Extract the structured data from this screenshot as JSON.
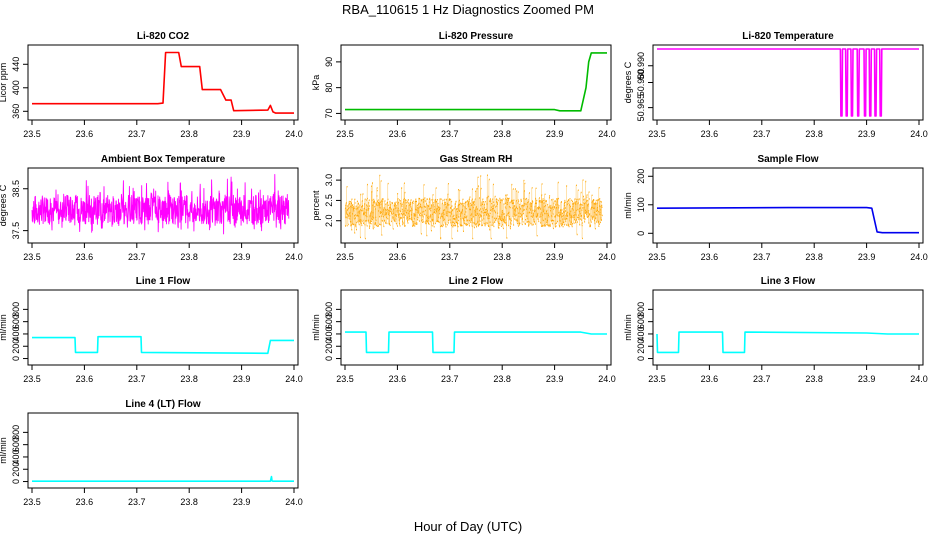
{
  "figure": {
    "title": "RBA_110615  1 Hz Diagnostics Zoomed PM",
    "xlabel": "Hour of Day (UTC)"
  },
  "chart_data": [
    {
      "id": "co2",
      "type": "line",
      "title": "Li-820 CO2",
      "ylabel": "Licor ppm",
      "color": "#ff0000",
      "xlim": [
        23.5,
        24.0
      ],
      "ylim": [
        352,
        466
      ],
      "xticks": [
        23.5,
        23.6,
        23.7,
        23.8,
        23.9,
        24.0
      ],
      "yticks": [
        360,
        400,
        440
      ],
      "yticklabels": [
        "360",
        "400",
        "440"
      ],
      "x": [
        23.5,
        23.6,
        23.74,
        23.75,
        23.755,
        23.78,
        23.785,
        23.82,
        23.825,
        23.86,
        23.87,
        23.88,
        23.885,
        23.95,
        23.955,
        23.96,
        23.965,
        24.0
      ],
      "y": [
        373,
        373,
        373,
        374,
        460,
        460,
        436,
        436,
        397,
        397,
        379,
        379,
        361,
        362,
        370,
        359,
        357,
        357
      ]
    },
    {
      "id": "pressure",
      "type": "line",
      "title": "Li-820 Pressure",
      "ylabel": "kPa",
      "color": "#00bb00",
      "xlim": [
        23.5,
        24.0
      ],
      "ylim": [
        69,
        95
      ],
      "xticks": [
        23.5,
        23.6,
        23.7,
        23.8,
        23.9,
        24.0
      ],
      "yticks": [
        70,
        80,
        90
      ],
      "yticklabels": [
        "70",
        "80",
        "90"
      ],
      "x": [
        23.5,
        23.9,
        23.91,
        23.95,
        23.96,
        23.965,
        23.97,
        24.0
      ],
      "y": [
        71.5,
        71.5,
        71.0,
        71.0,
        80,
        90,
        93.5,
        93.5
      ]
    },
    {
      "id": "temperature",
      "type": "line",
      "title": "Li-820 Temperature",
      "ylabel": "degrees C",
      "color": "#ff00ff",
      "xlim": [
        23.5,
        24.0
      ],
      "ylim": [
        50.96,
        51.0
      ],
      "xticks": [
        23.5,
        23.6,
        23.7,
        23.8,
        23.9,
        24.0
      ],
      "yticks": [
        50.965,
        50.98,
        50.99
      ],
      "yticklabels": [
        "50.965",
        "50.980",
        "50.990"
      ],
      "x": [
        23.5,
        23.85,
        23.851,
        23.853,
        23.854,
        23.86,
        23.861,
        23.863,
        23.864,
        23.87,
        23.871,
        23.873,
        23.874,
        23.882,
        23.883,
        23.885,
        23.886,
        23.895,
        23.896,
        23.898,
        23.899,
        23.905,
        23.906,
        23.908,
        23.909,
        23.915,
        23.916,
        23.918,
        23.919,
        23.925,
        23.926,
        23.928,
        23.929,
        24.0
      ],
      "y": [
        51.0,
        51.0,
        50.96,
        50.96,
        51.0,
        51.0,
        50.96,
        50.96,
        51.0,
        51.0,
        50.96,
        50.96,
        51.0,
        51.0,
        50.96,
        50.96,
        51.0,
        51.0,
        50.96,
        50.96,
        51.0,
        51.0,
        50.96,
        50.96,
        51.0,
        51.0,
        50.96,
        50.96,
        51.0,
        51.0,
        50.96,
        50.96,
        51.0,
        51.0
      ]
    },
    {
      "id": "ambient",
      "type": "line",
      "title": "Ambient Box Temperature",
      "ylabel": "degrees C",
      "color": "#ff00ff",
      "xlim": [
        23.5,
        24.0
      ],
      "ylim": [
        37.3,
        38.9
      ],
      "xticks": [
        23.5,
        23.6,
        23.7,
        23.8,
        23.9,
        24.0
      ],
      "yticks": [
        37.5,
        38.5
      ],
      "yticklabels": [
        "37.5",
        "38.5"
      ],
      "x": [
        23.5,
        23.99
      ],
      "y": [
        38.0,
        38.0
      ],
      "noise": {
        "type": "spiky",
        "baseline": 38.0,
        "spread": 0.35,
        "spikes": 0.45,
        "points": 900,
        "seed": 7
      }
    },
    {
      "id": "rh",
      "type": "scatter",
      "title": "Gas Stream RH",
      "ylabel": "percent",
      "color": "#ffa500",
      "xlim": [
        23.5,
        24.0
      ],
      "ylim": [
        1.55,
        3.2
      ],
      "xticks": [
        23.5,
        23.6,
        23.7,
        23.8,
        23.9,
        24.0
      ],
      "yticks": [
        2.0,
        2.5,
        3.0
      ],
      "yticklabels": [
        "2.0",
        "2.5",
        "3.0"
      ],
      "x": [
        23.5,
        23.99
      ],
      "y": [
        2.2,
        2.2
      ],
      "noise": {
        "type": "spiky",
        "baseline": 2.2,
        "spread": 0.35,
        "spikes": 0.55,
        "points": 1400,
        "seed": 11
      }
    },
    {
      "id": "sample",
      "type": "line",
      "title": "Sample Flow",
      "ylabel": "ml/min",
      "color": "#0000ee",
      "xlim": [
        23.5,
        24.0
      ],
      "ylim": [
        -20,
        215
      ],
      "xticks": [
        23.5,
        23.6,
        23.7,
        23.8,
        23.9,
        24.0
      ],
      "yticks": [
        0,
        100,
        200
      ],
      "yticklabels": [
        "0",
        "100",
        "200"
      ],
      "x": [
        23.5,
        23.75,
        23.9,
        23.91,
        23.92,
        23.93,
        24.0
      ],
      "y": [
        88,
        90,
        90,
        88,
        5,
        2,
        2
      ]
    },
    {
      "id": "line1",
      "type": "line",
      "title": "Line 1 Flow",
      "ylabel": "ml/min",
      "color": "#00ffff",
      "xlim": [
        23.5,
        24.0
      ],
      "ylim": [
        -40,
        1050
      ],
      "xticks": [
        23.5,
        23.6,
        23.7,
        23.8,
        23.9,
        24.0
      ],
      "yticks": [
        0,
        200,
        400,
        600,
        800
      ],
      "yticklabels": [
        "0",
        "200",
        "400",
        "600",
        "800"
      ],
      "x": [
        23.5,
        23.582,
        23.583,
        23.625,
        23.626,
        23.708,
        23.709,
        23.95,
        23.955,
        24.0
      ],
      "y": [
        340,
        340,
        100,
        100,
        355,
        355,
        100,
        85,
        295,
        295
      ]
    },
    {
      "id": "line2",
      "type": "line",
      "title": "Line 2 Flow",
      "ylabel": "ml/min",
      "color": "#00ffff",
      "xlim": [
        23.5,
        24.0
      ],
      "ylim": [
        -40,
        1050
      ],
      "xticks": [
        23.5,
        23.6,
        23.7,
        23.8,
        23.9,
        24.0
      ],
      "yticks": [
        0,
        200,
        400,
        600,
        800
      ],
      "yticklabels": [
        "0",
        "200",
        "400",
        "600",
        "800"
      ],
      "x": [
        23.5,
        23.54,
        23.541,
        23.583,
        23.584,
        23.667,
        23.668,
        23.708,
        23.709,
        23.95,
        23.97,
        24.0
      ],
      "y": [
        430,
        430,
        100,
        100,
        430,
        430,
        100,
        100,
        430,
        430,
        400,
        400
      ]
    },
    {
      "id": "line3",
      "type": "line",
      "title": "Line 3 Flow",
      "ylabel": "ml/min",
      "color": "#00ffff",
      "xlim": [
        23.5,
        24.0
      ],
      "ylim": [
        -40,
        1050
      ],
      "xticks": [
        23.5,
        23.6,
        23.7,
        23.8,
        23.9,
        24.0
      ],
      "yticks": [
        0,
        200,
        400,
        600,
        800
      ],
      "yticklabels": [
        "0",
        "200",
        "400",
        "600",
        "800"
      ],
      "x": [
        23.5,
        23.501,
        23.541,
        23.542,
        23.625,
        23.626,
        23.667,
        23.668,
        23.9,
        23.94,
        24.0
      ],
      "y": [
        400,
        100,
        100,
        430,
        430,
        100,
        100,
        430,
        415,
        400,
        400
      ]
    },
    {
      "id": "line4",
      "type": "line",
      "title": "Line 4 (LT) Flow",
      "ylabel": "ml/min",
      "color": "#00ffff",
      "xlim": [
        23.5,
        24.0
      ],
      "ylim": [
        -40,
        1050
      ],
      "xticks": [
        23.5,
        23.6,
        23.7,
        23.8,
        23.9,
        24.0
      ],
      "yticks": [
        0,
        200,
        400,
        600,
        800
      ],
      "yticklabels": [
        "0",
        "200",
        "400",
        "600",
        "800"
      ],
      "x": [
        23.5,
        23.955,
        23.957,
        23.958,
        23.96,
        24.0
      ],
      "y": [
        5,
        5,
        80,
        10,
        5,
        5
      ]
    }
  ]
}
